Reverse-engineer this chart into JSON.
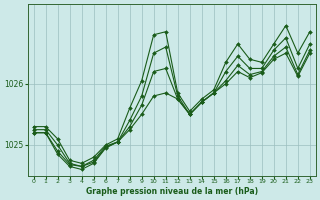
{
  "title": "Graphe pression niveau de la mer (hPa)",
  "background_color": "#cde9e8",
  "plot_bg_color": "#cde9e8",
  "line_color": "#1a5c1a",
  "grid_color": "#9bbfbf",
  "xlim": [
    -0.5,
    23.5
  ],
  "ylim": [
    1024.5,
    1027.3
  ],
  "yticks": [
    1025,
    1026
  ],
  "xticks": [
    0,
    1,
    2,
    3,
    4,
    5,
    6,
    7,
    8,
    9,
    10,
    11,
    12,
    13,
    14,
    15,
    16,
    17,
    18,
    19,
    20,
    21,
    22,
    23
  ],
  "line1_x": [
    0,
    1,
    2,
    3,
    4,
    5,
    6,
    7,
    8,
    9,
    10,
    11,
    12,
    13,
    14,
    15,
    16,
    17,
    18,
    19,
    20,
    21,
    22,
    23
  ],
  "line1_y": [
    1025.3,
    1025.3,
    1025.1,
    1024.75,
    1024.7,
    1024.8,
    1025.0,
    1025.1,
    1025.6,
    1026.05,
    1026.8,
    1026.85,
    1025.85,
    1025.55,
    1025.75,
    1025.9,
    1026.35,
    1026.65,
    1026.4,
    1026.35,
    1026.65,
    1026.95,
    1026.5,
    1026.85
  ],
  "line2_x": [
    0,
    1,
    2,
    3,
    4,
    5,
    6,
    7,
    8,
    9,
    10,
    11,
    12,
    13,
    14,
    15,
    16,
    17,
    18,
    19,
    20,
    21,
    22,
    23
  ],
  "line2_y": [
    1025.25,
    1025.25,
    1025.0,
    1024.7,
    1024.65,
    1024.75,
    1024.98,
    1025.05,
    1025.4,
    1025.8,
    1026.5,
    1026.6,
    1025.8,
    1025.5,
    1025.7,
    1025.85,
    1026.2,
    1026.45,
    1026.25,
    1026.25,
    1026.55,
    1026.75,
    1026.25,
    1026.65
  ],
  "line3_x": [
    0,
    1,
    2,
    3,
    4,
    5,
    6,
    7,
    8,
    9,
    10,
    11,
    12,
    13,
    14,
    15,
    16,
    17,
    18,
    19,
    20,
    21,
    22,
    23
  ],
  "line3_y": [
    1025.2,
    1025.2,
    1024.85,
    1024.65,
    1024.6,
    1024.7,
    1024.95,
    1025.05,
    1025.3,
    1025.65,
    1026.2,
    1026.25,
    1025.75,
    1025.5,
    1025.7,
    1025.85,
    1026.05,
    1026.3,
    1026.15,
    1026.2,
    1026.45,
    1026.6,
    1026.15,
    1026.55
  ],
  "line4_x": [
    0,
    1,
    2,
    3,
    4,
    5,
    6,
    7,
    8,
    9,
    10,
    11,
    12,
    13,
    14,
    15,
    16,
    17,
    18,
    19,
    20,
    21,
    22,
    23
  ],
  "line4_y": [
    1025.2,
    1025.2,
    1024.9,
    1024.68,
    1024.65,
    1024.72,
    1024.96,
    1025.05,
    1025.25,
    1025.5,
    1025.8,
    1025.85,
    1025.75,
    1025.5,
    1025.7,
    1025.85,
    1026.0,
    1026.2,
    1026.1,
    1026.18,
    1026.4,
    1026.5,
    1026.12,
    1026.5
  ]
}
